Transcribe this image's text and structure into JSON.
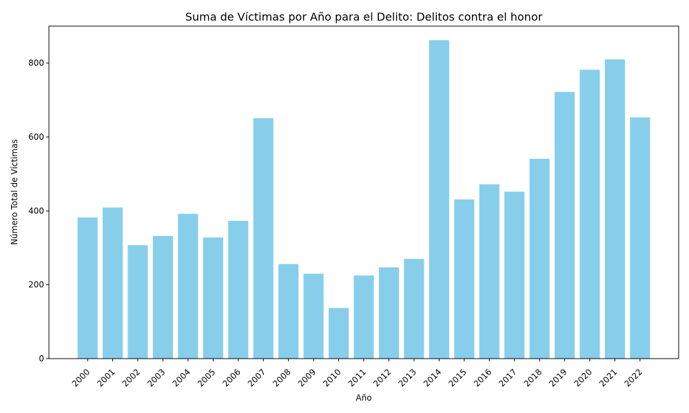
{
  "chart_data": {
    "type": "bar",
    "title": "Suma de Víctimas por Año para el Delito: Delitos contra el honor",
    "xlabel": "Año",
    "ylabel": "Número Total de Víctimas",
    "categories": [
      "2000",
      "2001",
      "2002",
      "2003",
      "2004",
      "2005",
      "2006",
      "2007",
      "2008",
      "2009",
      "2010",
      "2011",
      "2012",
      "2013",
      "2014",
      "2015",
      "2016",
      "2017",
      "2018",
      "2019",
      "2020",
      "2021",
      "2022"
    ],
    "values": [
      382,
      409,
      307,
      332,
      392,
      328,
      373,
      651,
      256,
      230,
      137,
      225,
      247,
      270,
      862,
      431,
      472,
      452,
      541,
      722,
      782,
      810,
      653
    ],
    "yticks": [
      0,
      200,
      400,
      600,
      800
    ],
    "ylim": [
      0,
      900
    ],
    "bar_color": "#87ceeb",
    "grid": false,
    "legend": "none"
  }
}
